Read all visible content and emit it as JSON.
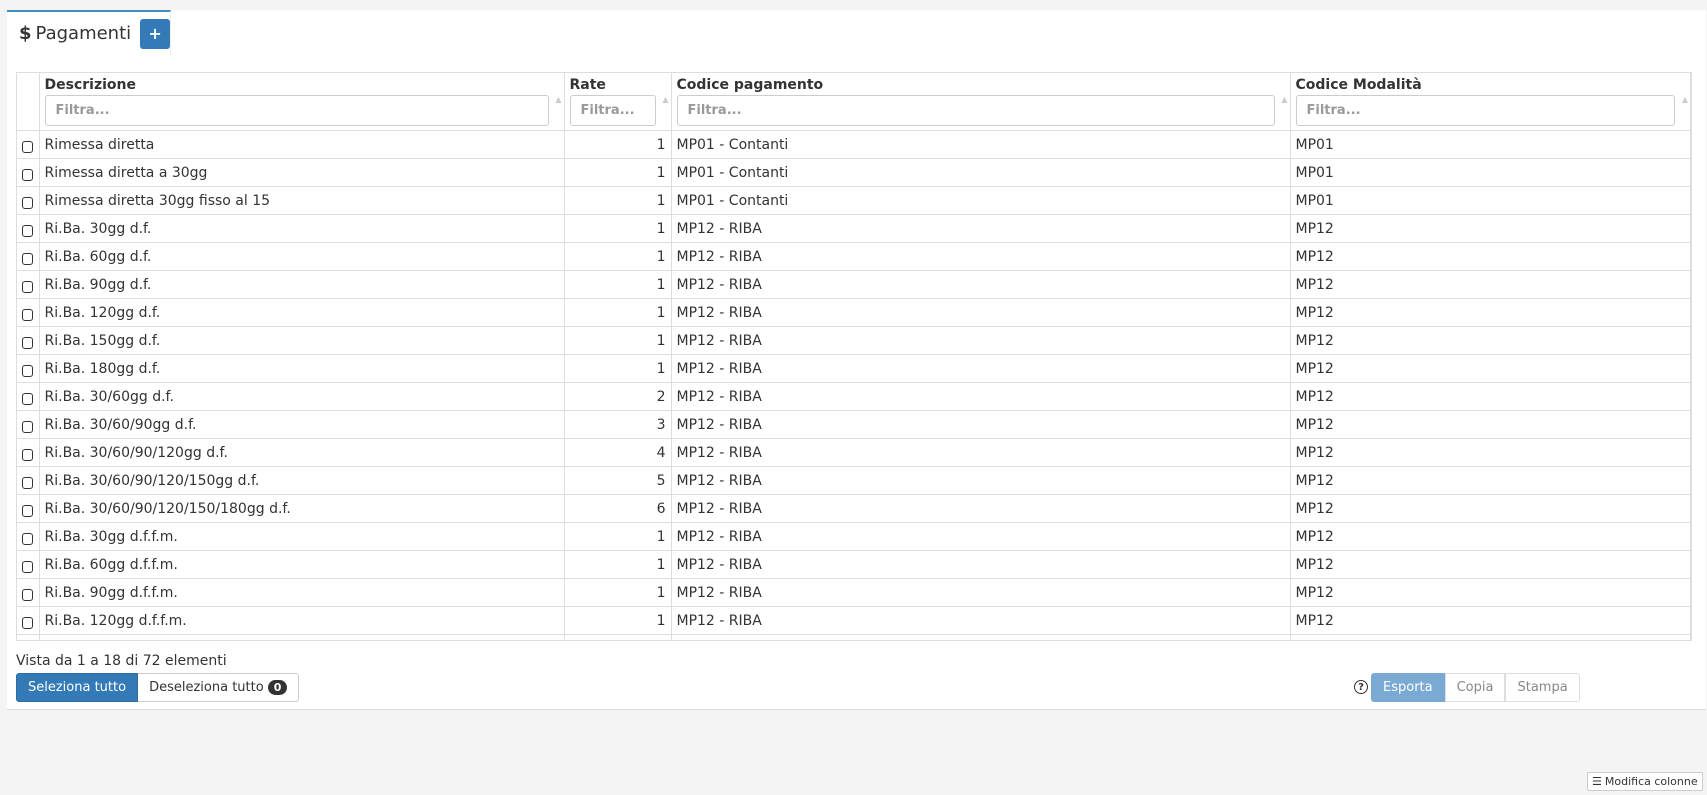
{
  "tab": {
    "icon": "dollar-icon",
    "title": "Pagamenti",
    "add_label": "+"
  },
  "table": {
    "columns": [
      "Descrizione",
      "Rate",
      "Codice pagamento",
      "Codice Modalità"
    ],
    "filter_placeholder": "Filtra...",
    "rows": [
      [
        "Rimessa diretta",
        "1",
        "MP01 - Contanti",
        "MP01"
      ],
      [
        "Rimessa diretta a 30gg",
        "1",
        "MP01 - Contanti",
        "MP01"
      ],
      [
        "Rimessa diretta 30gg fisso al 15",
        "1",
        "MP01 - Contanti",
        "MP01"
      ],
      [
        "Ri.Ba. 30gg d.f.",
        "1",
        "MP12 - RIBA",
        "MP12"
      ],
      [
        "Ri.Ba. 60gg d.f.",
        "1",
        "MP12 - RIBA",
        "MP12"
      ],
      [
        "Ri.Ba. 90gg d.f.",
        "1",
        "MP12 - RIBA",
        "MP12"
      ],
      [
        "Ri.Ba. 120gg d.f.",
        "1",
        "MP12 - RIBA",
        "MP12"
      ],
      [
        "Ri.Ba. 150gg d.f.",
        "1",
        "MP12 - RIBA",
        "MP12"
      ],
      [
        "Ri.Ba. 180gg d.f.",
        "1",
        "MP12 - RIBA",
        "MP12"
      ],
      [
        "Ri.Ba. 30/60gg d.f.",
        "2",
        "MP12 - RIBA",
        "MP12"
      ],
      [
        "Ri.Ba. 30/60/90gg d.f.",
        "3",
        "MP12 - RIBA",
        "MP12"
      ],
      [
        "Ri.Ba. 30/60/90/120gg d.f.",
        "4",
        "MP12 - RIBA",
        "MP12"
      ],
      [
        "Ri.Ba. 30/60/90/120/150gg d.f.",
        "5",
        "MP12 - RIBA",
        "MP12"
      ],
      [
        "Ri.Ba. 30/60/90/120/150/180gg d.f.",
        "6",
        "MP12 - RIBA",
        "MP12"
      ],
      [
        "Ri.Ba. 30gg d.f.f.m.",
        "1",
        "MP12 - RIBA",
        "MP12"
      ],
      [
        "Ri.Ba. 60gg d.f.f.m.",
        "1",
        "MP12 - RIBA",
        "MP12"
      ],
      [
        "Ri.Ba. 90gg d.f.f.m.",
        "1",
        "MP12 - RIBA",
        "MP12"
      ],
      [
        "Ri.Ba. 120gg d.f.f.m.",
        "1",
        "MP12 - RIBA",
        "MP12"
      ]
    ]
  },
  "footer": {
    "info": "Vista da 1 a 18 di 72 elementi",
    "select_all": "Seleziona tutto",
    "deselect_all": "Deseleziona tutto",
    "selected_count": "0",
    "help": "?",
    "export": "Esporta",
    "copy": "Copia",
    "print": "Stampa",
    "edit_columns": "Modifica colonne"
  }
}
